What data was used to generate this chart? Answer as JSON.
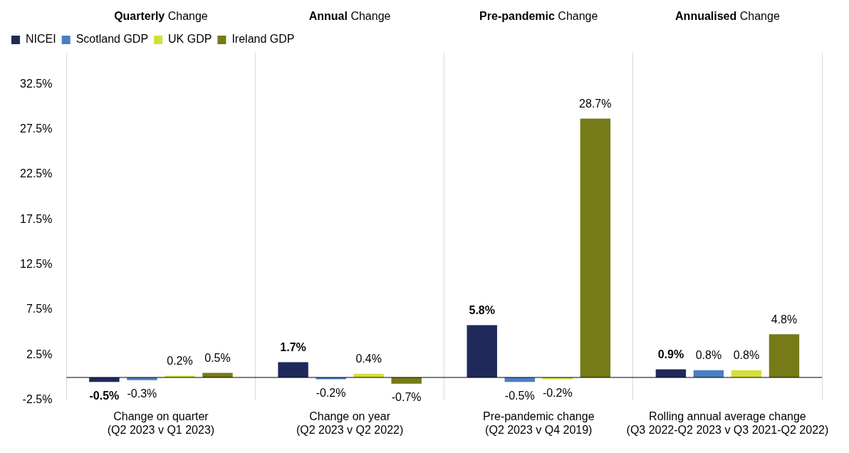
{
  "chart_data": {
    "type": "bar",
    "categories": [
      "Change on quarter (Q2 2023 v Q1 2023)",
      "Change on year (Q2 2023 v Q2 2022)",
      "Pre-pandemic change (Q2 2023 v Q4 2019)",
      "Rolling annual average change (Q3 2022-Q2 2023 v Q3 2021-Q2 2022)"
    ],
    "series": [
      {
        "name": "NICEI",
        "color": "#1f2a5a",
        "values": [
          -0.5,
          1.7,
          5.8,
          0.9
        ],
        "value_labels": [
          "-0.5%",
          "1.7%",
          "5.8%",
          "0.9%"
        ]
      },
      {
        "name": "Scotland GDP",
        "color": "#4a7fc1",
        "values": [
          -0.3,
          -0.2,
          -0.5,
          0.8
        ],
        "value_labels": [
          "-0.3%",
          "-0.2%",
          "-0.5%",
          "0.8%"
        ]
      },
      {
        "name": "UK GDP",
        "color": "#d4e03a",
        "values": [
          0.2,
          0.4,
          -0.2,
          0.8
        ],
        "value_labels": [
          "0.2%",
          "0.4%",
          "-0.2%",
          "0.8%"
        ]
      },
      {
        "name": "Ireland GDP",
        "color": "#767a17",
        "values": [
          0.5,
          -0.7,
          28.7,
          4.8
        ],
        "value_labels": [
          "0.5%",
          "-0.7%",
          "28.7%",
          "4.8%"
        ]
      }
    ],
    "annotations": [
      "Quarterly Change",
      "Annual Change",
      "Pre-pandemic Change",
      "Annualised Change"
    ],
    "ylim": [
      -2.5,
      36
    ],
    "yticks": [
      {
        "value": -2.5,
        "label": "-2.5%"
      },
      {
        "value": 2.5,
        "label": "2.5%"
      },
      {
        "value": 7.5,
        "label": "7.5%"
      },
      {
        "value": 12.5,
        "label": "12.5%"
      },
      {
        "value": 17.5,
        "label": "17.5%"
      },
      {
        "value": 22.5,
        "label": "22.5%"
      },
      {
        "value": 27.5,
        "label": "27.5%"
      },
      {
        "value": 32.5,
        "label": "32.5%"
      }
    ],
    "ref_lines": [
      {
        "axis": "y",
        "value": 0,
        "color": "#000000"
      }
    ],
    "grid": "x",
    "legend": "top left"
  }
}
